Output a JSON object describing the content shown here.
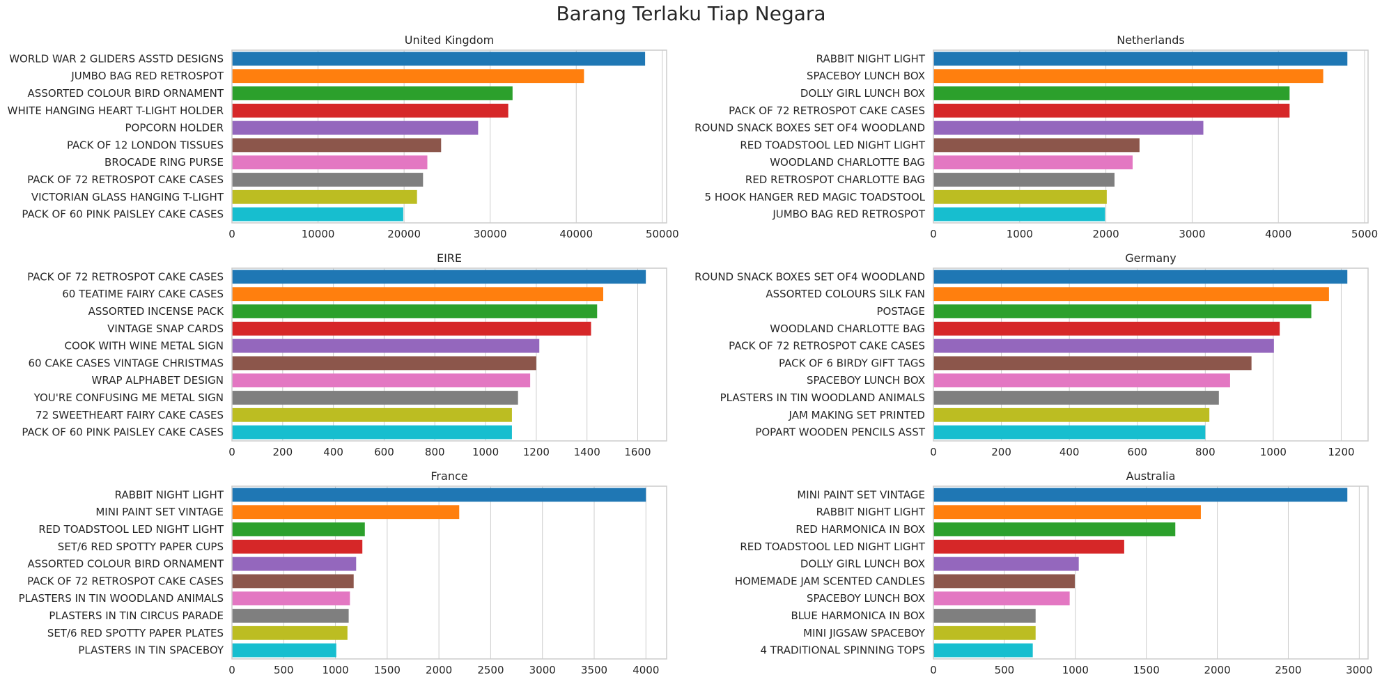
{
  "figure": {
    "title": "Barang Terlaku Tiap Negara"
  },
  "palette": [
    "#1f77b4",
    "#ff7f0e",
    "#2ca02c",
    "#d62728",
    "#9467bd",
    "#8c564b",
    "#e377c2",
    "#7f7f7f",
    "#bcbd22",
    "#17becf"
  ],
  "chart_data": [
    {
      "type": "bar",
      "orientation": "horizontal",
      "title": "United Kingdom",
      "categories": [
        "WORLD WAR 2 GLIDERS ASSTD DESIGNS",
        "JUMBO BAG RED RETROSPOT",
        "ASSORTED COLOUR BIRD ORNAMENT",
        "WHITE HANGING HEART T-LIGHT HOLDER",
        "POPCORN HOLDER",
        "PACK OF 12 LONDON TISSUES ",
        "BROCADE RING PURSE ",
        "PACK OF 72 RETROSPOT CAKE CASES",
        "VICTORIAN GLASS HANGING T-LIGHT",
        "PACK OF 60 PINK PAISLEY CAKE CASES"
      ],
      "values": [
        48000,
        40900,
        32600,
        32100,
        28600,
        24300,
        22700,
        22200,
        21500,
        19900
      ],
      "xlim": [
        0,
        50500
      ],
      "xticks": [
        0,
        10000,
        20000,
        30000,
        40000,
        50000
      ],
      "grid": true
    },
    {
      "type": "bar",
      "orientation": "horizontal",
      "title": "Netherlands",
      "categories": [
        "RABBIT NIGHT LIGHT",
        "SPACEBOY LUNCH BOX ",
        "DOLLY GIRL LUNCH BOX",
        "PACK OF 72 RETROSPOT CAKE CASES",
        "ROUND SNACK BOXES SET OF4 WOODLAND ",
        "RED TOADSTOOL LED NIGHT LIGHT",
        "WOODLAND CHARLOTTE BAG",
        "RED RETROSPOT CHARLOTTE BAG",
        "5 HOOK HANGER RED MAGIC TOADSTOOL",
        "JUMBO BAG RED RETROSPOT"
      ],
      "values": [
        4800,
        4520,
        4130,
        4130,
        3130,
        2390,
        2310,
        2100,
        2010,
        1990
      ],
      "xlim": [
        0,
        5040
      ],
      "xticks": [
        0,
        1000,
        2000,
        3000,
        4000,
        5000
      ],
      "grid": true
    },
    {
      "type": "bar",
      "orientation": "horizontal",
      "title": "EIRE",
      "categories": [
        "PACK OF 72 RETROSPOT CAKE CASES",
        "60 TEATIME FAIRY CAKE CASES",
        "ASSORTED INCENSE PACK",
        "VINTAGE SNAP CARDS",
        "COOK WITH WINE METAL SIGN ",
        "60 CAKE CASES VINTAGE CHRISTMAS",
        "WRAP ALPHABET DESIGN",
        "YOU'RE CONFUSING ME METAL SIGN ",
        "72 SWEETHEART FAIRY CAKE CASES",
        "PACK OF 60 PINK PAISLEY CAKE CASES"
      ],
      "values": [
        1632,
        1464,
        1440,
        1416,
        1212,
        1200,
        1176,
        1128,
        1104,
        1104
      ],
      "xlim": [
        0,
        1714
      ],
      "xticks": [
        0,
        200,
        400,
        600,
        800,
        1000,
        1200,
        1400,
        1600
      ],
      "grid": true
    },
    {
      "type": "bar",
      "orientation": "horizontal",
      "title": "Germany",
      "categories": [
        "ROUND SNACK BOXES SET OF4 WOODLAND ",
        "ASSORTED COLOURS SILK FAN",
        "POSTAGE",
        "WOODLAND CHARLOTTE BAG",
        "PACK OF 72 RETROSPOT CAKE CASES",
        "PACK OF 6 BIRDY GIFT TAGS",
        "SPACEBOY LUNCH BOX ",
        "PLASTERS IN TIN WOODLAND ANIMALS",
        "JAM MAKING SET PRINTED",
        "POPART WOODEN PENCILS ASST"
      ],
      "values": [
        1218,
        1164,
        1112,
        1019,
        1002,
        936,
        873,
        840,
        812,
        800
      ],
      "xlim": [
        0,
        1279
      ],
      "xticks": [
        0,
        200,
        400,
        600,
        800,
        1000,
        1200
      ],
      "grid": true
    },
    {
      "type": "bar",
      "orientation": "horizontal",
      "title": "France",
      "categories": [
        "RABBIT NIGHT LIGHT",
        "MINI PAINT SET VINTAGE ",
        "RED TOADSTOOL LED NIGHT LIGHT",
        "SET/6 RED SPOTTY PAPER CUPS",
        "ASSORTED COLOUR BIRD ORNAMENT",
        "PACK OF 72 RETROSPOT CAKE CASES",
        "PLASTERS IN TIN WOODLAND ANIMALS",
        "PLASTERS IN TIN CIRCUS PARADE ",
        "SET/6 RED SPOTTY PAPER PLATES",
        "PLASTERS IN TIN SPACEBOY"
      ],
      "values": [
        4000,
        2196,
        1284,
        1260,
        1200,
        1176,
        1140,
        1128,
        1116,
        1008
      ],
      "xlim": [
        0,
        4200
      ],
      "xticks": [
        0,
        500,
        1000,
        1500,
        2000,
        2500,
        3000,
        3500,
        4000
      ],
      "grid": true
    },
    {
      "type": "bar",
      "orientation": "horizontal",
      "title": "Australia",
      "categories": [
        "MINI PAINT SET VINTAGE ",
        "RABBIT NIGHT LIGHT",
        "RED  HARMONICA IN BOX ",
        "RED TOADSTOOL LED NIGHT LIGHT",
        "DOLLY GIRL LUNCH BOX",
        "HOMEMADE JAM SCENTED CANDLES",
        "SPACEBOY LUNCH BOX ",
        "BLUE HARMONICA IN BOX ",
        "MINI JIGSAW SPACEBOY",
        "4 TRADITIONAL SPINNING TOPS"
      ],
      "values": [
        2916,
        1884,
        1704,
        1344,
        1024,
        996,
        960,
        720,
        720,
        700
      ],
      "xlim": [
        0,
        3062
      ],
      "xticks": [
        0,
        500,
        1000,
        1500,
        2000,
        2500,
        3000
      ],
      "grid": true
    }
  ]
}
